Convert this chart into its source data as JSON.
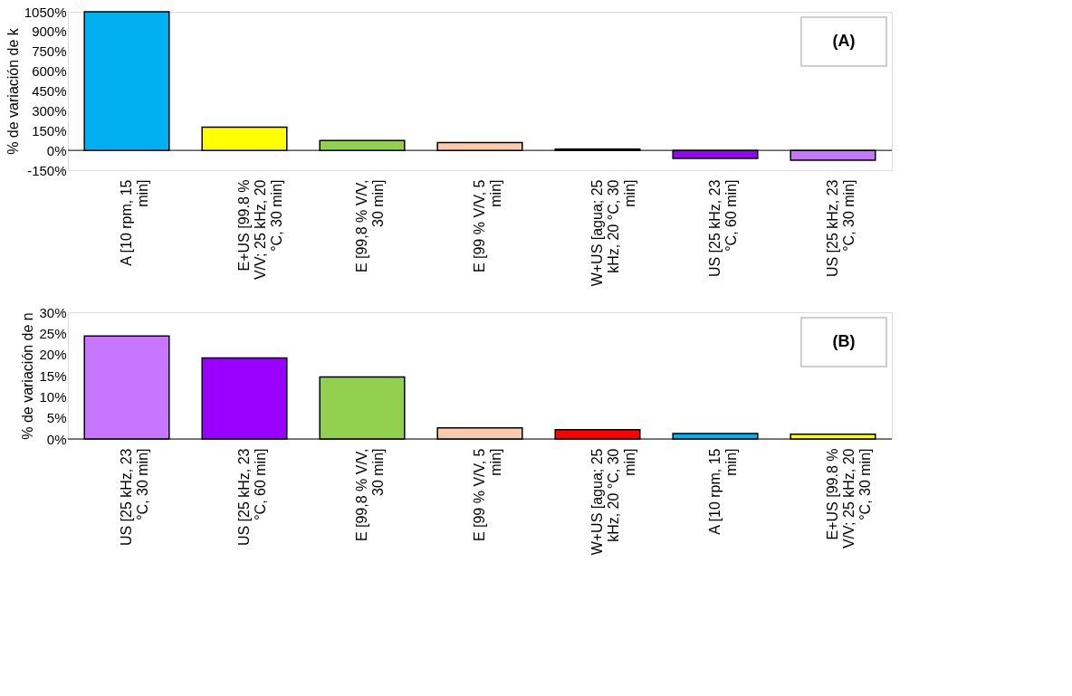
{
  "chart_data": [
    {
      "type": "bar",
      "ylabel": "% de variación de k",
      "categories": [
        "A [10 rpm, 15 min]",
        "E+US [99.8 % V/V; 25 kHz, 20 °C, 30 min]",
        "E [99,8 % V/V, 30 min]",
        "E [99 % V/V, 5 min]",
        "W+US [agua; 25 kHz, 20 °C, 30 min]",
        "US [25 kHz, 23 °C, 60 min]",
        "US [25 kHz, 23 °C, 30 min]"
      ],
      "values": [
        1050,
        175,
        75,
        60,
        10,
        -60,
        -75
      ],
      "colors": [
        "#00b0f0",
        "#ffff00",
        "#92d050",
        "#f8cbad",
        "#ff0000",
        "#9900ff",
        "#c875ff"
      ],
      "ylim": [
        -150,
        1050
      ],
      "yticks": [
        {
          "value": -150,
          "label": "-150%"
        },
        {
          "value": 0,
          "label": "0%"
        },
        {
          "value": 150,
          "label": "150%"
        },
        {
          "value": 300,
          "label": "300%"
        },
        {
          "value": 450,
          "label": "450%"
        },
        {
          "value": 600,
          "label": "600%"
        },
        {
          "value": 750,
          "label": "750%"
        },
        {
          "value": 900,
          "label": "900%"
        },
        {
          "value": 1050,
          "label": "1050%"
        }
      ],
      "annotations": [
        "(A)"
      ]
    },
    {
      "type": "bar",
      "ylabel": "% de variación de n",
      "categories": [
        "US [25 kHz, 23 °C, 30 min]",
        "US [25 kHz, 23 °C, 60 min]",
        "E [99,8 % V/V, 30 min]",
        "E [99 % V/V, 5 min]",
        "W+US [agua; 25 kHz, 20 °C, 30 min]",
        "A [10 rpm, 15 min]",
        "E+US [99.8 % V/V; 25 kHz, 20 °C, 30 min]"
      ],
      "values": [
        24.4,
        19.2,
        14.7,
        2.6,
        2.2,
        1.3,
        1.1
      ],
      "colors": [
        "#c875ff",
        "#9900ff",
        "#92d050",
        "#f8cbad",
        "#ff0000",
        "#00b0f0",
        "#ffff00"
      ],
      "ylim": [
        0,
        30
      ],
      "yticks": [
        {
          "value": 0,
          "label": "0%"
        },
        {
          "value": 5,
          "label": "5%"
        },
        {
          "value": 10,
          "label": "10%"
        },
        {
          "value": 15,
          "label": "15%"
        },
        {
          "value": 20,
          "label": "20%"
        },
        {
          "value": 25,
          "label": "25%"
        },
        {
          "value": 30,
          "label": "30%"
        }
      ],
      "annotations": [
        "(B)"
      ]
    }
  ]
}
